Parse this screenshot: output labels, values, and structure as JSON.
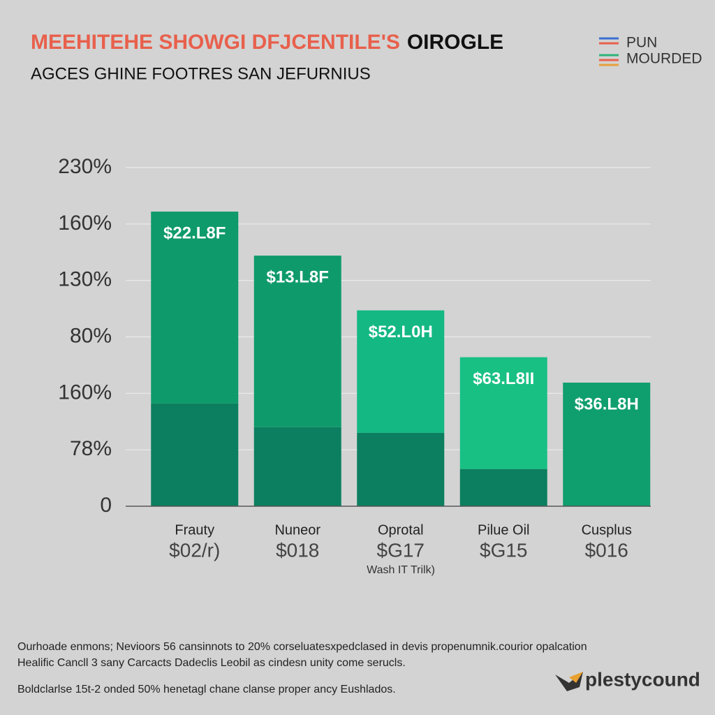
{
  "chart_data": {
    "type": "stacked_bar",
    "title_parts": [
      "MEEHITEHE SHOWGI DFJCENTILE'S",
      "OIROGLE"
    ],
    "subtitle": "AGCES GHINE FOOTRES SAN JEFURNIUS",
    "legend": [
      "PUN",
      "MOURDED"
    ],
    "categories": [
      "Frauty",
      "Nuneor",
      "Oprotal",
      "Pilue Oil",
      "Cusplus"
    ],
    "sublabels": [
      "$02/r)",
      "$018",
      "$G17",
      "$G15",
      "$016"
    ],
    "annotation": "Wash IT Trilk)",
    "series": [
      {
        "name": "MOURDED",
        "color": "#0b7f5f",
        "values": [
          1.82,
          1.4,
          1.3,
          0.66,
          null
        ]
      },
      {
        "name": "PUN",
        "color": "#0f9a6c",
        "colors": [
          "#0e9a6a",
          "#0f9a6c",
          "#14b882",
          "#18c084",
          "#0f9e6e"
        ],
        "values": [
          3.4,
          3.04,
          2.17,
          1.98,
          2.19
        ],
        "value_labels": [
          "$22.L8F",
          "$13.L8F",
          "$52.L0H",
          "$63.L8II",
          "$36.L8H"
        ]
      }
    ],
    "ylim": [
      0,
      6
    ],
    "yticks": [
      0,
      {
        "value": 1,
        "label": "78%"
      },
      {
        "value": 2,
        "label": "160%"
      },
      {
        "value": 3,
        "label": "80%"
      },
      {
        "value": 4,
        "label": "130%"
      },
      {
        "value": 5,
        "label": "160%"
      },
      {
        "value": 6,
        "label": "230%"
      }
    ],
    "grid": true,
    "footer": [
      "Ourhoade enmons; Nevioors 56 cansinnots to 20% corseluatesxpedclased in devis propenumnik.courior opalcation",
      "Healific Cancll 3 sany Carcacts Dadeclis Leobil as cindesn unity come serucls.",
      "Boldclarlse 15t-2 onded 50% henetagl chane clanse proper ancy Eushlados."
    ],
    "logo": "plestycound"
  }
}
